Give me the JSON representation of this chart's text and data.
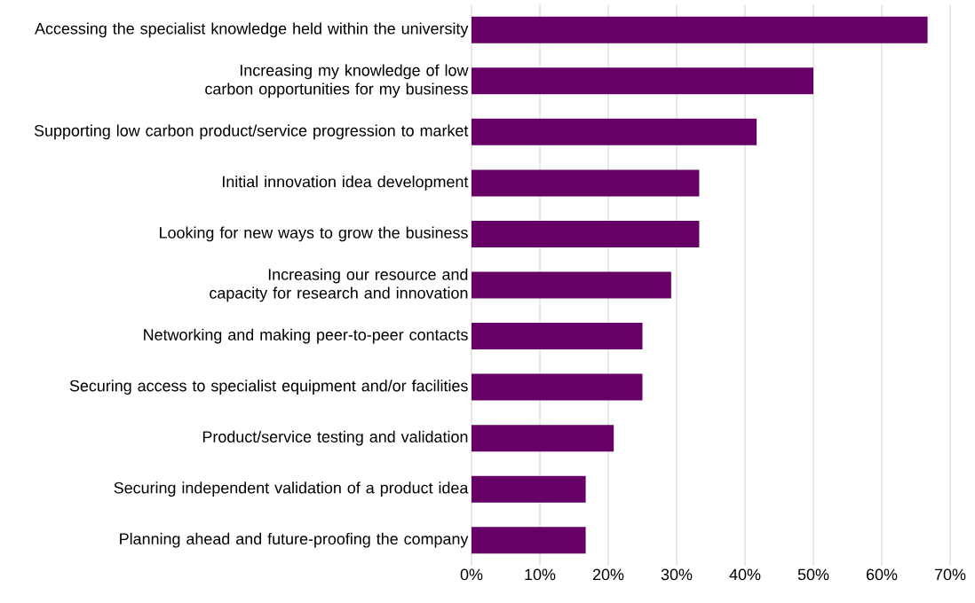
{
  "chart_data": {
    "type": "bar",
    "orientation": "horizontal",
    "categories": [
      "Accessing the specialist knowledge held within the university",
      "Increasing my knowledge of low carbon opportunities for my business",
      "Supporting low carbon product/service progression to market",
      "Initial innovation idea development",
      "Looking for new ways to grow the business",
      "Increasing our resource and capacity for research and innovation",
      "Networking and making peer-to-peer contacts",
      "Securing access to specialist equipment and/or facilities",
      "Product/service testing and validation",
      "Securing independent validation of a product idea",
      "Planning ahead and future-proofing the company"
    ],
    "values": [
      66.7,
      50,
      41.7,
      33.3,
      33.3,
      29.2,
      25,
      25,
      20.8,
      16.7,
      16.7
    ],
    "color": "#660066",
    "xlim": [
      0,
      70
    ],
    "xticks": [
      {
        "value": 0,
        "label": "0%"
      },
      {
        "value": 10,
        "label": "10%"
      },
      {
        "value": 20,
        "label": "20%"
      },
      {
        "value": 30,
        "label": "30%"
      },
      {
        "value": 40,
        "label": "40%"
      },
      {
        "value": 50,
        "label": "50%"
      },
      {
        "value": 60,
        "label": "60%"
      },
      {
        "value": 70,
        "label": "70%"
      }
    ],
    "grid": "x"
  }
}
